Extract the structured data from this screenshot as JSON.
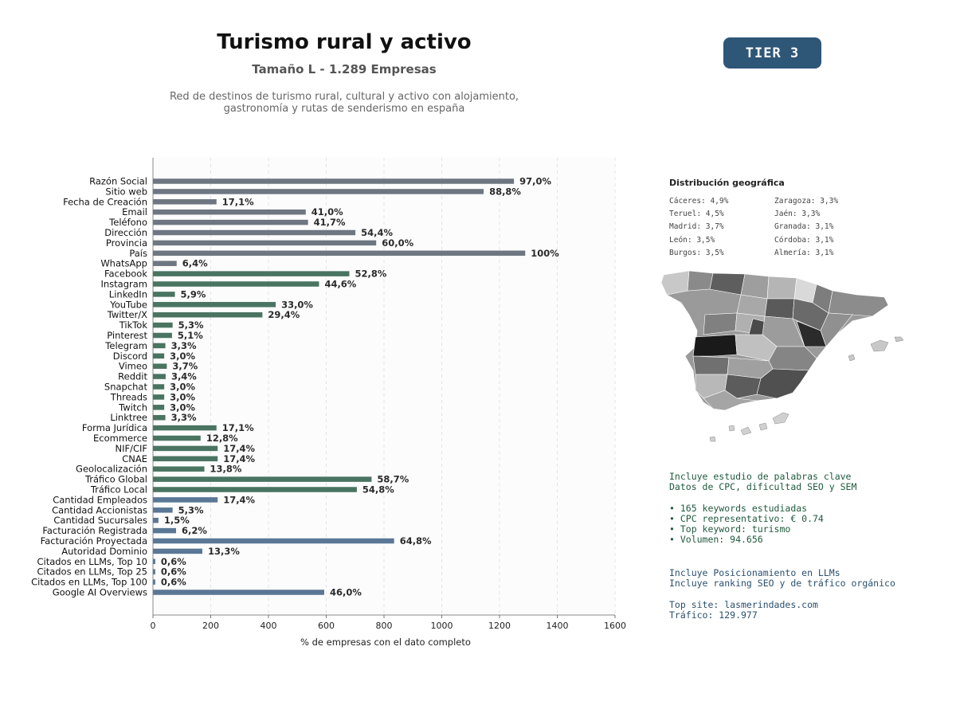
{
  "header": {
    "title": "Turismo rural y activo",
    "subtitle": "Tamaño L - 1.289 Empresas",
    "description_line1": "Red de destinos de turismo rural, cultural y activo con alojamiento,",
    "description_line2": "gastronomía y rutas de senderismo en españa",
    "tier_label": "TIER 3"
  },
  "colors": {
    "gray_bar": "#6e7681",
    "green_bar": "#4a7462",
    "blue_bar": "#5a7795",
    "tier_bg": "#2e5677"
  },
  "chart_data": {
    "type": "bar",
    "orientation": "horizontal",
    "xlabel": "% de empresas con el dato completo",
    "xlim": [
      0,
      1600
    ],
    "xticks": [
      0,
      200,
      400,
      600,
      800,
      1000,
      1200,
      1400,
      1600
    ],
    "grid": "vertical-dashed",
    "categories": [
      "Razón Social",
      "Sitio web",
      "Fecha de Creación",
      "Email",
      "Teléfono",
      "Dirección",
      "Provincia",
      "País",
      "WhatsApp",
      "Facebook",
      "Instagram",
      "LinkedIn",
      "YouTube",
      "Twitter/X",
      "TikTok",
      "Pinterest",
      "Telegram",
      "Discord",
      "Vimeo",
      "Reddit",
      "Snapchat",
      "Threads",
      "Twitch",
      "Linktree",
      "Forma Jurídica",
      "Ecommerce",
      "NIF/CIF",
      "CNAE",
      "Geolocalización",
      "Tráfico Global",
      "Tráfico Local",
      "Cantidad Empleados",
      "Cantidad Accionistas",
      "Cantidad Sucursales",
      "Facturación Registrada",
      "Facturación Proyectada",
      "Autoridad Dominio",
      "Citados en LLMs, Top 10",
      "Citados en LLMs, Top 25",
      "Citados en LLMs, Top 100",
      "Google AI Overviews"
    ],
    "values": [
      1250,
      1145,
      220,
      529,
      537,
      701,
      773,
      1289,
      82,
      680,
      575,
      76,
      425,
      379,
      68,
      66,
      43,
      39,
      48,
      44,
      39,
      39,
      39,
      43,
      220,
      165,
      224,
      224,
      178,
      757,
      706,
      224,
      68,
      19,
      80,
      835,
      171,
      8,
      8,
      8,
      593
    ],
    "labels": [
      "97,0%",
      "88,8%",
      "17,1%",
      "41,0%",
      "41,7%",
      "54,4%",
      "60,0%",
      "100%",
      "6,4%",
      "52,8%",
      "44,6%",
      "5,9%",
      "33,0%",
      "29,4%",
      "5,3%",
      "5,1%",
      "3,3%",
      "3,0%",
      "3,7%",
      "3,4%",
      "3,0%",
      "3,0%",
      "3,0%",
      "3,3%",
      "17,1%",
      "12,8%",
      "17,4%",
      "17,4%",
      "13,8%",
      "58,7%",
      "54,8%",
      "17,4%",
      "5,3%",
      "1,5%",
      "6,2%",
      "64,8%",
      "13,3%",
      "0,6%",
      "0,6%",
      "0,6%",
      "46,0%"
    ],
    "groups": [
      "gray",
      "gray",
      "gray",
      "gray",
      "gray",
      "gray",
      "gray",
      "gray",
      "gray",
      "green",
      "green",
      "green",
      "green",
      "green",
      "green",
      "green",
      "green",
      "green",
      "green",
      "green",
      "green",
      "green",
      "green",
      "green",
      "green",
      "green",
      "green",
      "green",
      "green",
      "green",
      "green",
      "blue",
      "blue",
      "blue",
      "blue",
      "blue",
      "blue",
      "blue",
      "blue",
      "blue",
      "blue"
    ]
  },
  "geo": {
    "title": "Distribución geográfica",
    "items": [
      "Cáceres: 4,9%",
      "Zaragoza: 3,3%",
      "Teruel: 4,5%",
      "Jaén: 3,3%",
      "Madrid: 3,7%",
      "Granada: 3,1%",
      "León: 3,5%",
      "Córdoba: 3,1%",
      "Burgos: 3,5%",
      "Almería: 3,1%"
    ]
  },
  "keywords": {
    "line1": "Incluye estudio de palabras clave",
    "line2": "Datos de CPC, dificultad SEO y SEM",
    "bullet1": "• 165 keywords estudiadas",
    "bullet2": "• CPC representativo: € 0.74",
    "bullet3": "• Top keyword: turismo",
    "bullet4": "• Volumen: 94.656"
  },
  "llm": {
    "line1": "Incluye Posicionamiento en LLMs",
    "line2": "Incluye ranking SEO y de tráfico orgánico",
    "top_site": "Top site: lasmerindades.com",
    "traffic": "Tráfico: 129.977"
  }
}
